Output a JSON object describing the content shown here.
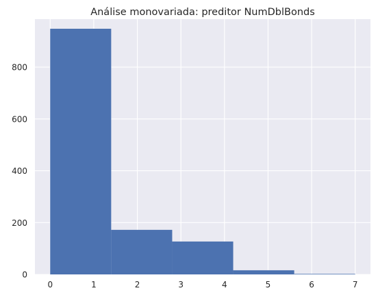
{
  "chart_data": {
    "type": "bar",
    "subtype": "histogram",
    "title": "Análise monovariada: preditor NumDblBonds",
    "xlabel": "",
    "ylabel": "",
    "xlim": [
      -0.35,
      7.35
    ],
    "ylim": [
      0,
      985
    ],
    "bins": [
      {
        "x0": 0.0,
        "x1": 1.4,
        "count": 948
      },
      {
        "x0": 1.4,
        "x1": 2.8,
        "count": 172
      },
      {
        "x0": 2.8,
        "x1": 4.2,
        "count": 127
      },
      {
        "x0": 4.2,
        "x1": 5.6,
        "count": 16
      },
      {
        "x0": 5.6,
        "x1": 7.0,
        "count": 2
      }
    ],
    "xticks": [
      0,
      1,
      2,
      3,
      4,
      5,
      6,
      7
    ],
    "xtick_labels": [
      "0",
      "1",
      "2",
      "3",
      "4",
      "5",
      "6",
      "7"
    ],
    "yticks": [
      0,
      200,
      400,
      600,
      800
    ],
    "ytick_labels": [
      "0",
      "200",
      "400",
      "600",
      "800"
    ],
    "grid": true,
    "colors": {
      "bar": "#4C72B0",
      "background": "#EAEAF2",
      "grid": "#FFFFFF",
      "text": "#262626"
    }
  }
}
